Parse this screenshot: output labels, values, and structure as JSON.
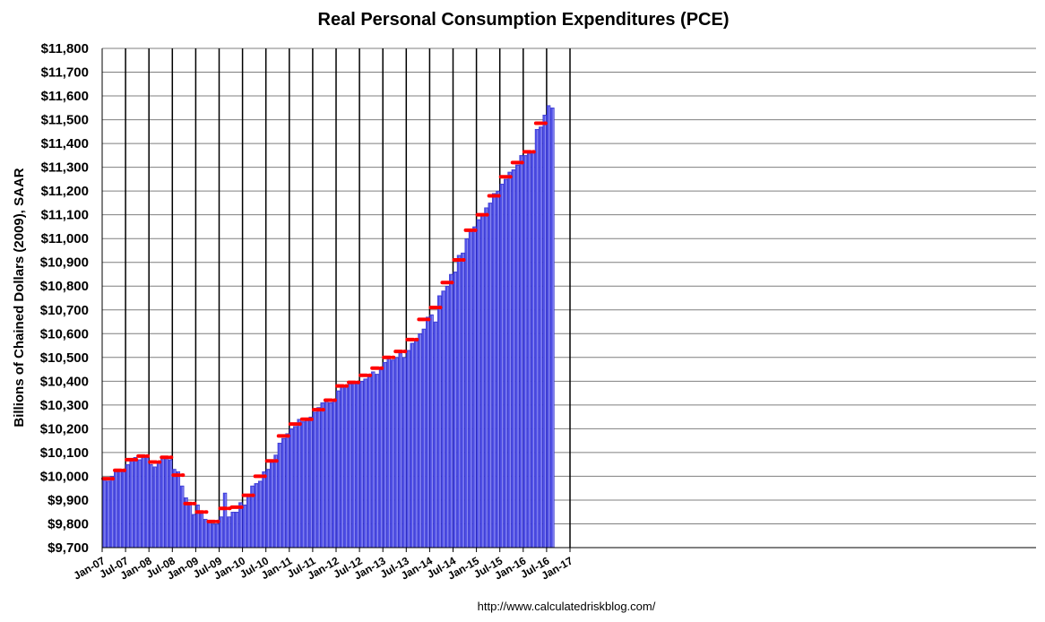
{
  "chart_data": {
    "type": "bar",
    "title": "Real Personal Consumption Expenditures (PCE)",
    "ylabel": "Billions of Chained Dollars (2009), SAAR",
    "xlabel": "",
    "ylim": [
      9700,
      11800
    ],
    "ytick_step": 100,
    "ytick_labels": [
      "$9,700",
      "$9,800",
      "$9,900",
      "$10,000",
      "$10,100",
      "$10,200",
      "$10,300",
      "$10,400",
      "$10,500",
      "$10,600",
      "$10,700",
      "$10,800",
      "$10,900",
      "$11,000",
      "$11,100",
      "$11,200",
      "$11,300",
      "$11,400",
      "$11,500",
      "$11,600",
      "$11,700",
      "$11,800"
    ],
    "xtick_labels": [
      "Jan-07",
      "Jul-07",
      "Jan-08",
      "Jul-08",
      "Jan-09",
      "Jul-09",
      "Jan-10",
      "Jul-10",
      "Jan-11",
      "Jul-11",
      "Jan-12",
      "Jul-12",
      "Jan-13",
      "Jul-13",
      "Jan-14",
      "Jul-14",
      "Jan-15",
      "Jul-15",
      "Jan-16",
      "Jul-16",
      "Jan-17"
    ],
    "start_month": "2007-01",
    "series": [
      {
        "kind": "monthly bars",
        "values": [
          9985,
          9980,
          10000,
          10020,
          10030,
          10020,
          10050,
          10070,
          10080,
          10070,
          10090,
          10080,
          10050,
          10040,
          10060,
          10080,
          10080,
          10070,
          10030,
          10020,
          9960,
          9910,
          9890,
          9840,
          9880,
          9850,
          9820,
          9810,
          9800,
          9800,
          9830,
          9930,
          9830,
          9850,
          9850,
          9890,
          9880,
          9920,
          9960,
          9970,
          9980,
          10020,
          10030,
          10060,
          10090,
          10140,
          10160,
          10180,
          10200,
          10210,
          10240,
          10230,
          10240,
          10250,
          10270,
          10290,
          10310,
          10320,
          10310,
          10320,
          10360,
          10380,
          10380,
          10390,
          10400,
          10390,
          10400,
          10410,
          10420,
          10440,
          10430,
          10450,
          10480,
          10500,
          10490,
          10500,
          10520,
          10500,
          10530,
          10560,
          10570,
          10600,
          10620,
          10670,
          10680,
          10650,
          10760,
          10780,
          10800,
          10850,
          10860,
          10930,
          10940,
          11000,
          11040,
          11050,
          11080,
          11100,
          11130,
          11150,
          11190,
          11200,
          11230,
          11250,
          11280,
          11290,
          11310,
          11350,
          11350,
          11360,
          11370,
          11460,
          11470,
          11520,
          11560,
          11550
        ]
      },
      {
        "kind": "quarterly average markers",
        "values": [
          9990,
          10025,
          10070,
          10085,
          10060,
          10080,
          10005,
          9885,
          9850,
          9810,
          9865,
          9870,
          9920,
          10000,
          10065,
          10170,
          10220,
          10240,
          10280,
          10320,
          10380,
          10395,
          10425,
          10455,
          10500,
          10525,
          10575,
          10660,
          10710,
          10815,
          10910,
          11035,
          11100,
          11180,
          11260,
          11320,
          11365,
          11485
        ]
      }
    ],
    "colors": {
      "bar_fill": "#5050e8",
      "bar_edge": "#2020c0",
      "bar_highlight": "#b8b8f4",
      "marker": "#ff0000",
      "vline": "#000000",
      "hgrid": "#7f7f7f"
    },
    "vertical_lines": "every July and January",
    "grid": true
  },
  "footer": {
    "url": "http://www.calculatedriskblog.com/"
  }
}
